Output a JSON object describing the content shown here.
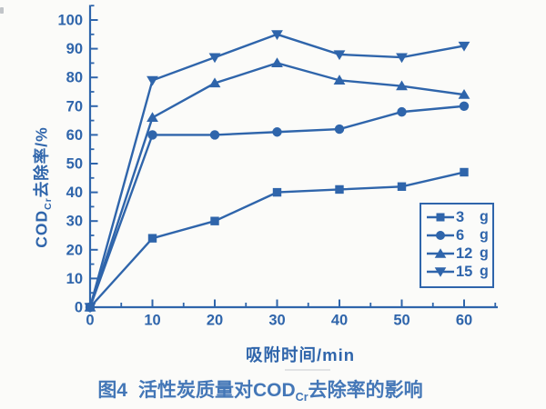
{
  "figure": {
    "caption_fig": "图4",
    "caption_prefix": "活性炭质量对COD",
    "caption_sub": "Cr",
    "caption_suffix": "去除率的影响",
    "ylabel_prefix": "COD",
    "ylabel_sub": "Cr",
    "ylabel_suffix": "去除率/%",
    "xlabel": "吸附时间/min"
  },
  "colors": {
    "accent": "#2f65ab",
    "caption": "#4477b7",
    "background": "#fbfbf9"
  },
  "chart_data": {
    "type": "line",
    "title": "图4 活性炭质量对CODCr去除率的影响",
    "xlabel": "吸附时间/min",
    "ylabel": "CODCr去除率/%",
    "x": [
      0,
      10,
      20,
      30,
      40,
      50,
      60
    ],
    "series": [
      {
        "name": "3 g",
        "qty": "3",
        "unit": "g",
        "marker": "square",
        "values": [
          0,
          24,
          30,
          40,
          41,
          42,
          47
        ]
      },
      {
        "name": "6 g",
        "qty": "6",
        "unit": "g",
        "marker": "circle",
        "values": [
          0,
          60,
          60,
          61,
          62,
          68,
          70
        ]
      },
      {
        "name": "12 g",
        "qty": "12",
        "unit": "g",
        "marker": "triangle-up",
        "values": [
          0,
          66,
          78,
          85,
          79,
          77,
          74
        ]
      },
      {
        "name": "15 g",
        "qty": "15",
        "unit": "g",
        "marker": "triangle-down",
        "values": [
          0,
          79,
          87,
          95,
          88,
          87,
          91
        ]
      }
    ],
    "xlim": [
      0,
      65
    ],
    "ylim": [
      0,
      105
    ],
    "x_major_ticks": [
      0,
      10,
      20,
      30,
      40,
      50,
      60
    ],
    "y_major_ticks": [
      0,
      10,
      20,
      30,
      40,
      50,
      60,
      70,
      80,
      90,
      100
    ],
    "minor_tick_step": 5,
    "grid": false,
    "legend_position": "lower-right",
    "legend_items": [
      "3 g",
      "6 g",
      "12 g",
      "15 g"
    ]
  }
}
